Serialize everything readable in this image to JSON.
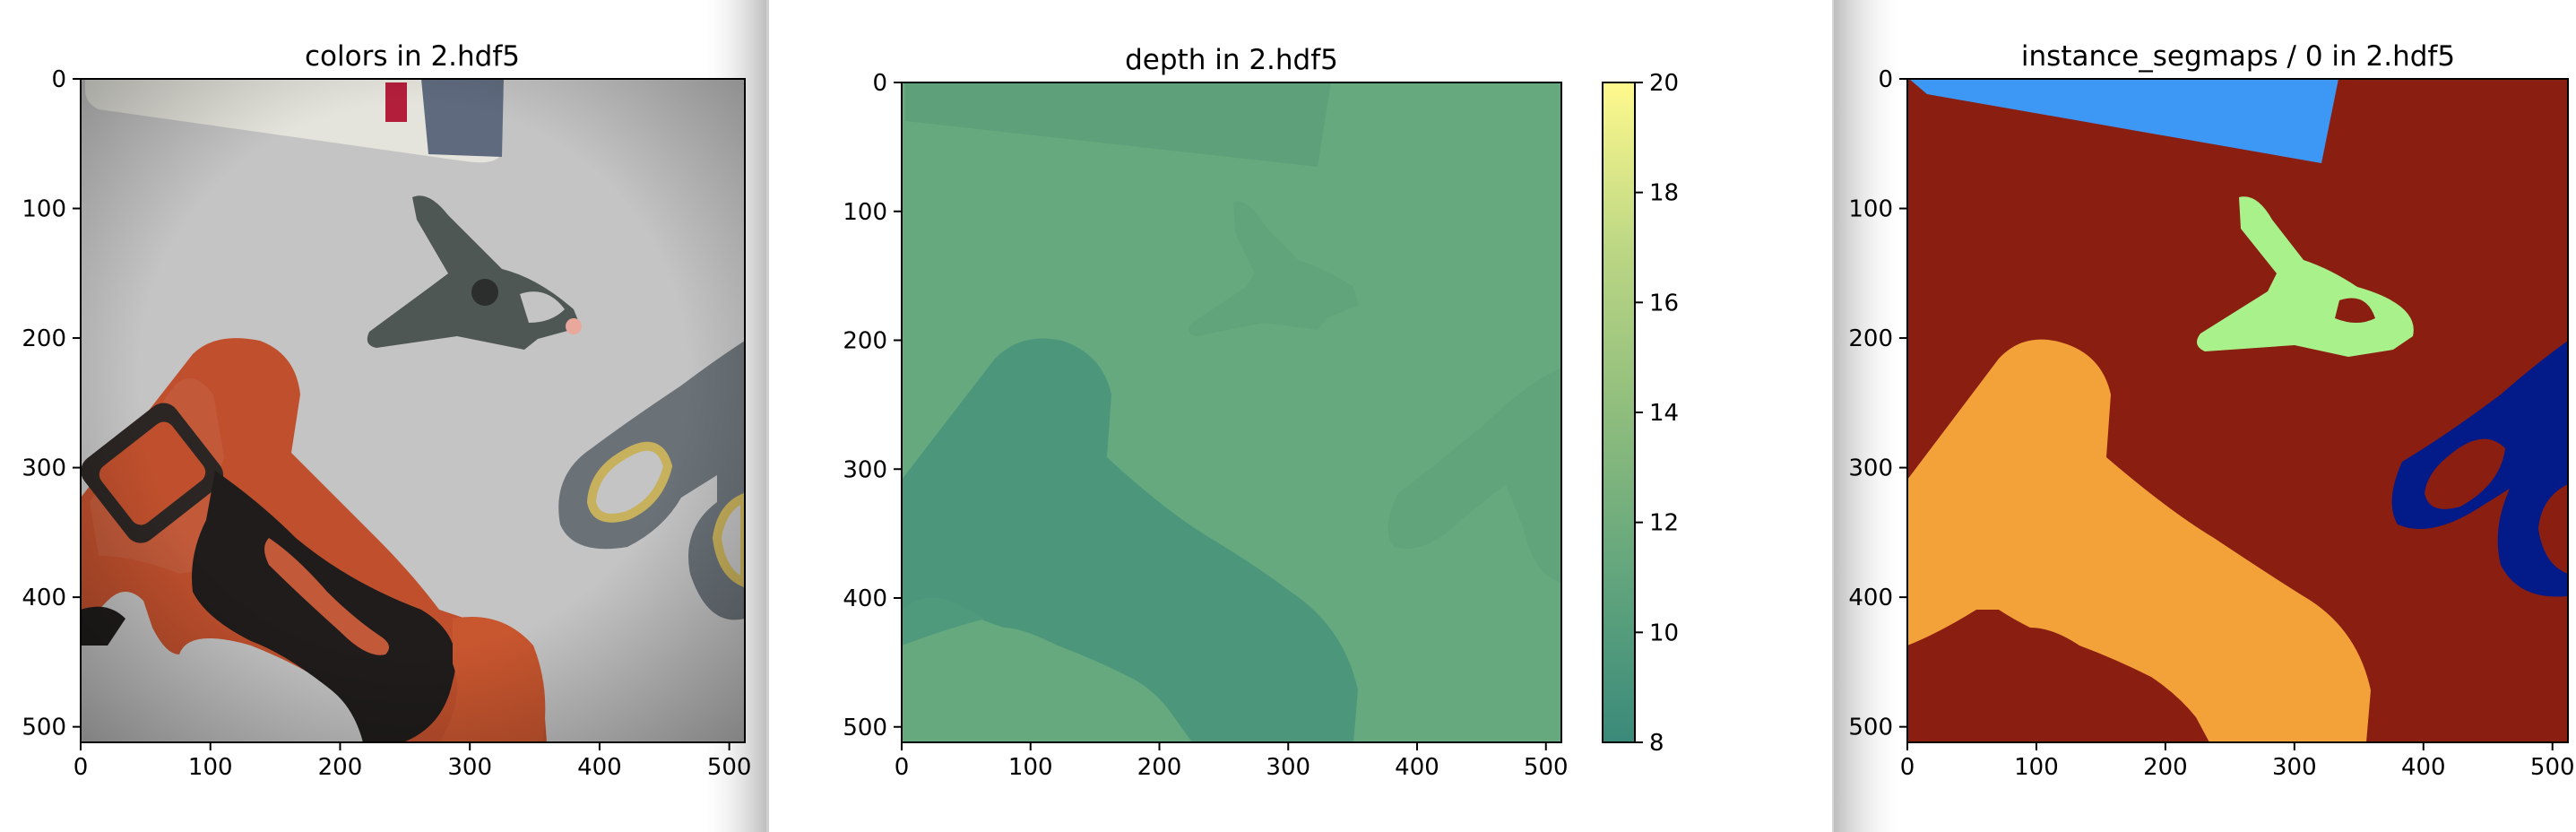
{
  "chart_data": [
    {
      "type": "heatmap",
      "title": "colors in 2.hdf5",
      "image": "rgb render: orange-black drill, clamp, scissors, lotion bottle on grey surface",
      "xlim": [
        0,
        512
      ],
      "ylim": [
        512,
        0
      ],
      "x_ticks": [
        "0",
        "100",
        "200",
        "300",
        "400",
        "500"
      ],
      "y_ticks": [
        "0",
        "100",
        "200",
        "300",
        "400",
        "500"
      ]
    },
    {
      "type": "heatmap",
      "title": "depth in 2.hdf5",
      "image": "depth map, nearly uniform green (~10-11)",
      "xlim": [
        0,
        512
      ],
      "ylim": [
        512,
        0
      ],
      "x_ticks": [
        "0",
        "100",
        "200",
        "300",
        "400",
        "500"
      ],
      "y_ticks": [
        "0",
        "100",
        "200",
        "300",
        "400",
        "500"
      ],
      "colorbar": {
        "min": 8,
        "max": 20,
        "ticks": [
          "20",
          "18",
          "16",
          "14",
          "12",
          "10",
          "8"
        ],
        "colormap": [
          "#3a8a7a",
          "#62a57d",
          "#8fbd7d",
          "#bcd784",
          "#fff98d"
        ]
      }
    },
    {
      "type": "heatmap",
      "title": "instance_segmaps / 0 in 2.hdf5",
      "image": "instance segmentation map",
      "xlim": [
        0,
        512
      ],
      "ylim": [
        512,
        0
      ],
      "x_ticks": [
        "0",
        "100",
        "200",
        "300",
        "400",
        "500"
      ],
      "y_ticks": [
        "0",
        "100",
        "200",
        "300",
        "400",
        "500"
      ],
      "segment_colors": {
        "background": "#8a1f11",
        "bottle": "#3d98f5",
        "clamp": "#a9f28b",
        "drill": "#f3a23a",
        "scissors": "#031a89"
      }
    }
  ]
}
